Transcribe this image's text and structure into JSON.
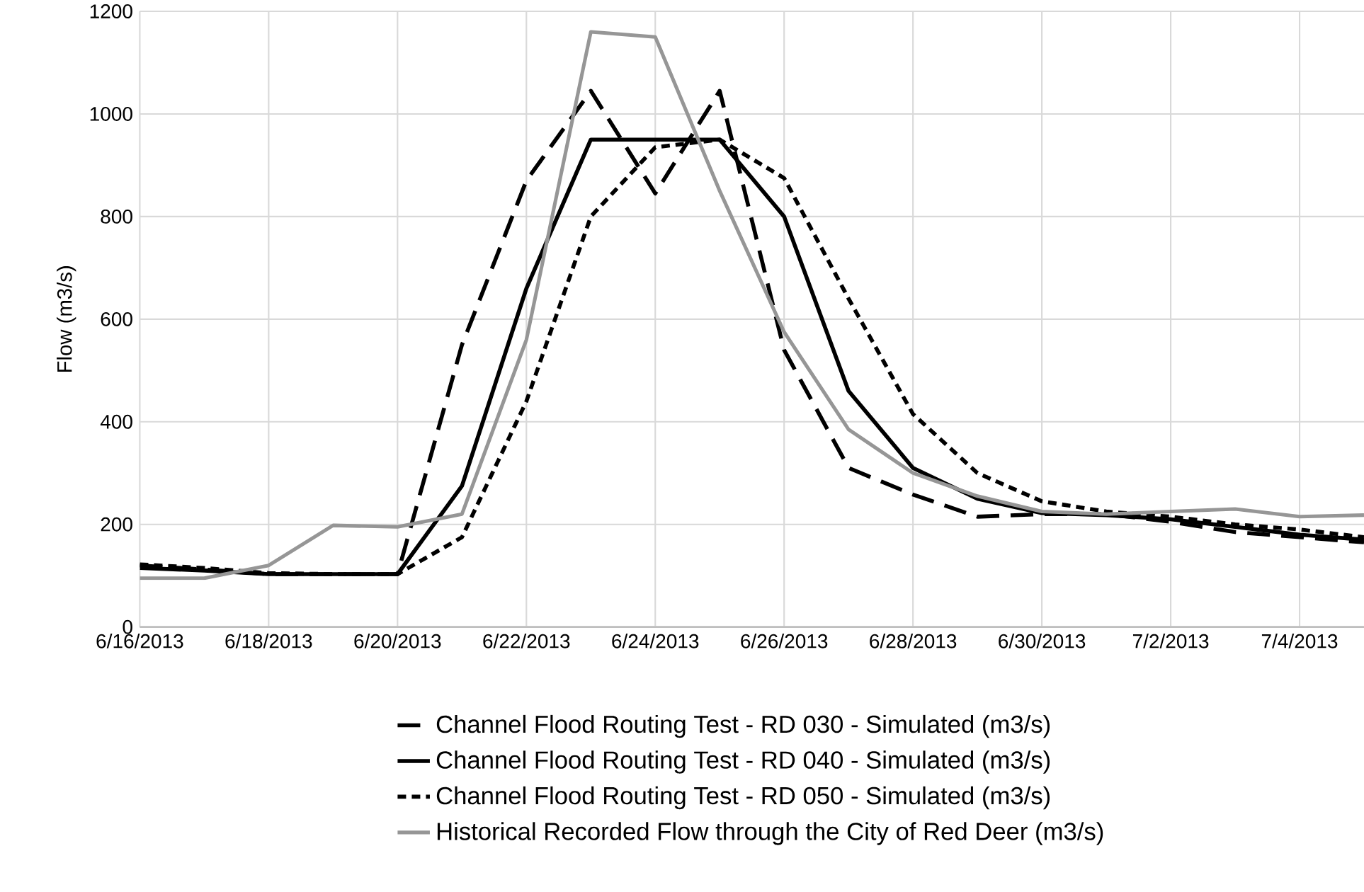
{
  "chart_data": {
    "type": "line",
    "ylabel": "Flow (m3/s)",
    "x": [
      "2013-06-16",
      "2013-06-17",
      "2013-06-18",
      "2013-06-19",
      "2013-06-20",
      "2013-06-21",
      "2013-06-22",
      "2013-06-23",
      "2013-06-24",
      "2013-06-25",
      "2013-06-26",
      "2013-06-27",
      "2013-06-28",
      "2013-06-29",
      "2013-06-30",
      "2013-07-01",
      "2013-07-02",
      "2013-07-03",
      "2013-07-04",
      "2013-07-05"
    ],
    "series": [
      {
        "name": "Channel Flood Routing Test -  RD 030 - Simulated (m3/s)",
        "color": "#000000",
        "line_style": "dashed",
        "values": [
          120,
          112,
          103,
          103,
          103,
          550,
          870,
          1045,
          845,
          1045,
          540,
          310,
          258,
          215,
          220,
          220,
          205,
          185,
          175,
          165
        ]
      },
      {
        "name": "Channel Flood Routing Test -  RD 040 - Simulated (m3/s)",
        "color": "#000000",
        "line_style": "solid",
        "values": [
          115,
          110,
          103,
          103,
          103,
          275,
          660,
          950,
          950,
          950,
          800,
          460,
          310,
          250,
          222,
          218,
          210,
          195,
          180,
          170
        ]
      },
      {
        "name": "Channel Flood Routing Test -  RD 050 - Simulated (m3/s)",
        "color": "#000000",
        "line_style": "dotted",
        "values": [
          122,
          115,
          105,
          103,
          103,
          175,
          440,
          800,
          935,
          950,
          875,
          640,
          415,
          300,
          245,
          225,
          215,
          200,
          190,
          175
        ]
      },
      {
        "name": "Historical Recorded Flow through the City of Red Deer (m3/s)",
        "color": "#969696",
        "line_style": "solid",
        "values": [
          95,
          95,
          120,
          198,
          195,
          220,
          560,
          1160,
          1150,
          850,
          575,
          385,
          300,
          255,
          225,
          220,
          225,
          230,
          215,
          218
        ]
      }
    ],
    "xlim": [
      "2013-06-16",
      "2013-07-05"
    ],
    "xticks": [
      {
        "value": "2013-06-16",
        "label": "6/16/2013"
      },
      {
        "value": "2013-06-18",
        "label": "6/18/2013"
      },
      {
        "value": "2013-06-20",
        "label": "6/20/2013"
      },
      {
        "value": "2013-06-22",
        "label": "6/22/2013"
      },
      {
        "value": "2013-06-24",
        "label": "6/24/2013"
      },
      {
        "value": "2013-06-26",
        "label": "6/26/2013"
      },
      {
        "value": "2013-06-28",
        "label": "6/28/2013"
      },
      {
        "value": "2013-06-30",
        "label": "6/30/2013"
      },
      {
        "value": "2013-07-02",
        "label": "7/2/2013"
      },
      {
        "value": "2013-07-04",
        "label": "7/4/2013"
      }
    ],
    "ylim": [
      0,
      1200
    ],
    "yticks": [
      0,
      200,
      400,
      600,
      800,
      1000,
      1200
    ],
    "grid": true,
    "legend": "bottom",
    "marker": "none"
  }
}
